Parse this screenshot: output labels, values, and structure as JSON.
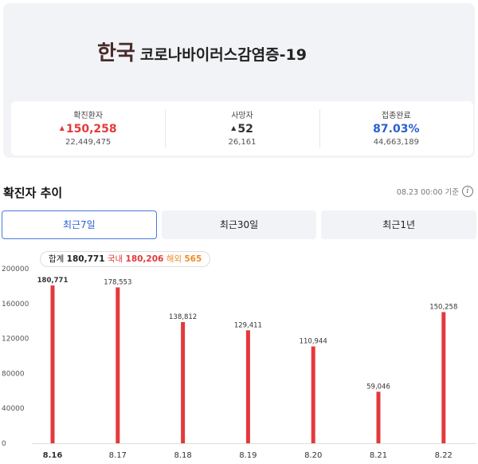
{
  "hero": {
    "country": "한국",
    "disease": "코로나바이러스감염증-19"
  },
  "stats": [
    {
      "label": "확진환자",
      "value": "150,258",
      "arrow": "▲",
      "sub": "22,449,475"
    },
    {
      "label": "사망자",
      "value": "52",
      "arrow": "▲",
      "sub": "26,161"
    },
    {
      "label": "접종완료",
      "value": "87.03%",
      "arrow": "",
      "sub": "44,663,189"
    }
  ],
  "section": {
    "title": "확진자 추이",
    "updated": "08.23 00:00 기준",
    "info_icon": "info-circle-icon"
  },
  "tabs": [
    {
      "label": "최근7일",
      "active": true
    },
    {
      "label": "최근30일",
      "active": false
    },
    {
      "label": "최근1년",
      "active": false
    }
  ],
  "summary": {
    "total_label": "합계",
    "total_value": "180,771",
    "domestic_label": "국내",
    "domestic_value": "180,206",
    "overseas_label": "해외",
    "overseas_value": "565"
  },
  "colors": {
    "bar": "#e4393c",
    "accent": "#2a5fd1",
    "overseas": "#f08a24"
  },
  "chart_data": {
    "type": "bar",
    "categories": [
      "8.16",
      "8.17",
      "8.18",
      "8.19",
      "8.20",
      "8.21",
      "8.22"
    ],
    "values": [
      180771,
      178553,
      138812,
      129411,
      110944,
      59046,
      150258
    ],
    "value_labels": [
      "180,771",
      "178,553",
      "138,812",
      "129,411",
      "110,944",
      "59,046",
      "150,258"
    ],
    "yticks": [
      0,
      40000,
      80000,
      120000,
      160000,
      200000
    ],
    "ylim": [
      0,
      200000
    ],
    "highlight_index": 0
  }
}
